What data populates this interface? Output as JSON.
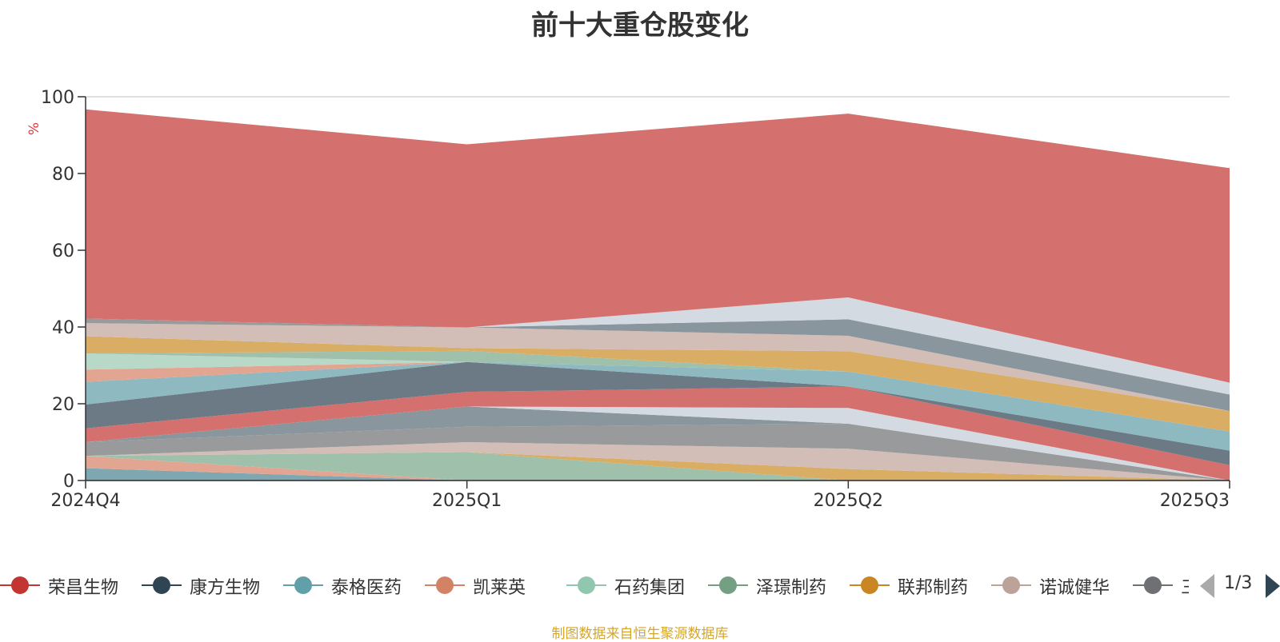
{
  "title": "前十大重仓股变化",
  "source_note": "制图数据来自恒生聚源数据库",
  "legend": {
    "page": "1/3",
    "items": [
      {
        "name": "荣昌生物",
        "color": "#c23531"
      },
      {
        "name": "康方生物",
        "color": "#2f4554"
      },
      {
        "name": "泰格医药",
        "color": "#61a0a8"
      },
      {
        "name": "凯莱英",
        "color": "#d48265"
      },
      {
        "name": "石药集团",
        "color": "#91c7ae"
      },
      {
        "name": "泽璟制药",
        "color": "#749f83"
      },
      {
        "name": "联邦制药",
        "color": "#ca8622"
      },
      {
        "name": "诺诚健华",
        "color": "#bda29a"
      },
      {
        "name": "三生制药",
        "color": "#6e7074"
      }
    ]
  },
  "chart_data": {
    "type": "area",
    "stacked": true,
    "title": "前十大重仓股变化",
    "ylabel": "%",
    "ylim": [
      0,
      100
    ],
    "yticks": [
      0,
      20,
      40,
      60,
      80,
      100
    ],
    "categories": [
      "2024Q4",
      "2025Q1",
      "2025Q2",
      "2025Q3"
    ],
    "grid": true,
    "series": [
      {
        "color": "#7fa7b1",
        "values": [
          3.2,
          0,
          0,
          0
        ]
      },
      {
        "color": "#e1a592",
        "values": [
          3.2,
          0,
          0,
          0
        ]
      },
      {
        "color": "#9fc1ab",
        "values": [
          0,
          7.4,
          0,
          0
        ]
      },
      {
        "color": "#d9ad64",
        "values": [
          0,
          0,
          3.0,
          0
        ]
      },
      {
        "color": "#d2bdb7",
        "values": [
          0,
          2.6,
          5.3,
          0
        ]
      },
      {
        "color": "#999a9c",
        "values": [
          3.6,
          4.0,
          6.5,
          0
        ]
      },
      {
        "color": "#8a969d",
        "values": [
          0,
          5.3,
          0,
          0
        ]
      },
      {
        "color": "#d4dae1",
        "values": [
          0,
          0,
          4.1,
          0
        ]
      },
      {
        "color": "#d4706d",
        "values": [
          3.6,
          3.8,
          5.6,
          4.0
        ]
      },
      {
        "color": "#6c7a85",
        "values": [
          6.2,
          7.8,
          0,
          3.8
        ]
      },
      {
        "color": "#8eb9c0",
        "values": [
          5.9,
          0,
          3.9,
          5.0
        ]
      },
      {
        "color": "#e1a592",
        "values": [
          3.2,
          0,
          0,
          0
        ]
      },
      {
        "color": "#b8d8c8",
        "values": [
          4.2,
          0,
          0,
          0
        ]
      },
      {
        "color": "#9fc1ab",
        "values": [
          0,
          2.9,
          0,
          0
        ]
      },
      {
        "color": "#d9ad64",
        "values": [
          4.5,
          0.7,
          5.3,
          5.3
        ]
      },
      {
        "color": "#d2bdb7",
        "values": [
          3.4,
          5.4,
          4.0,
          0
        ]
      },
      {
        "color": "#999a9c",
        "values": [
          1.2,
          0,
          0,
          0
        ]
      },
      {
        "color": "#8a969d",
        "values": [
          0,
          0,
          4.3,
          4.3
        ]
      },
      {
        "color": "#d4dae1",
        "values": [
          0,
          0,
          5.7,
          3.1
        ]
      },
      {
        "color": "#d4706d",
        "values": [
          54.5,
          47.7,
          47.9,
          55.9
        ]
      }
    ]
  }
}
